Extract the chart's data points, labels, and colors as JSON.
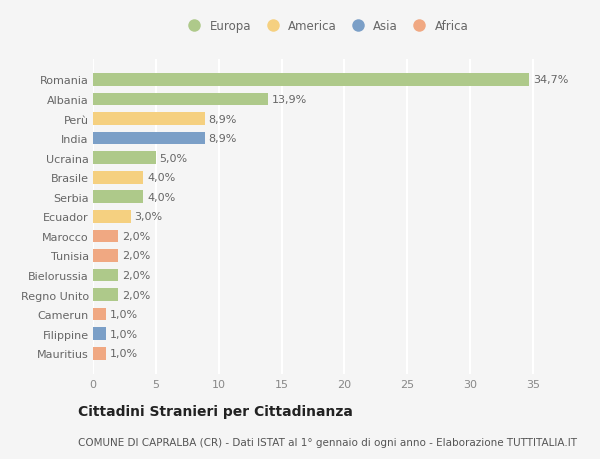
{
  "countries": [
    "Romania",
    "Albania",
    "Perù",
    "India",
    "Ucraina",
    "Brasile",
    "Serbia",
    "Ecuador",
    "Marocco",
    "Tunisia",
    "Bielorussia",
    "Regno Unito",
    "Camerun",
    "Filippine",
    "Mauritius"
  ],
  "values": [
    34.7,
    13.9,
    8.9,
    8.9,
    5.0,
    4.0,
    4.0,
    3.0,
    2.0,
    2.0,
    2.0,
    2.0,
    1.0,
    1.0,
    1.0
  ],
  "labels": [
    "34,7%",
    "13,9%",
    "8,9%",
    "8,9%",
    "5,0%",
    "4,0%",
    "4,0%",
    "3,0%",
    "2,0%",
    "2,0%",
    "2,0%",
    "2,0%",
    "1,0%",
    "1,0%",
    "1,0%"
  ],
  "continents": [
    "Europa",
    "Europa",
    "America",
    "Asia",
    "Europa",
    "America",
    "Europa",
    "America",
    "Africa",
    "Africa",
    "Europa",
    "Europa",
    "Africa",
    "Asia",
    "Africa"
  ],
  "colors": {
    "Europa": "#aec98a",
    "America": "#f5d080",
    "Asia": "#7b9fc7",
    "Africa": "#f0a882"
  },
  "legend_order": [
    "Europa",
    "America",
    "Asia",
    "Africa"
  ],
  "xlim": [
    0,
    37
  ],
  "xticks": [
    0,
    5,
    10,
    15,
    20,
    25,
    30,
    35
  ],
  "title": "Cittadini Stranieri per Cittadinanza",
  "subtitle": "COMUNE DI CAPRALBA (CR) - Dati ISTAT al 1° gennaio di ogni anno - Elaborazione TUTTITALIA.IT",
  "bg_color": "#f5f5f5",
  "grid_color": "#ffffff",
  "bar_height": 0.65,
  "label_fontsize": 8,
  "tick_fontsize": 8,
  "legend_fontsize": 8.5,
  "title_fontsize": 10,
  "subtitle_fontsize": 7.5
}
